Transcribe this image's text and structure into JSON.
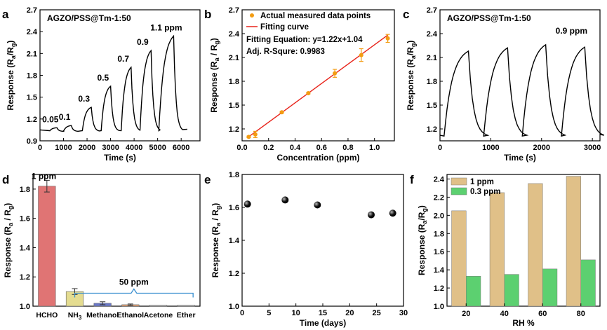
{
  "chart_data": [
    {
      "panel": "a",
      "type": "line",
      "annotation": "AGZO/PSS@Tm-1:50",
      "xlabel": "Time (s)",
      "ylabel": "Response (R",
      "ylabel_sub1": "a",
      "ylabel_mid": "/R",
      "ylabel_sub2": "g",
      "ylabel_end": ")",
      "xlim": [
        0,
        6800
      ],
      "ylim": [
        0.9,
        2.7
      ],
      "xticks": [
        0,
        1000,
        2000,
        3000,
        4000,
        5000,
        6000
      ],
      "yticks": [
        0.9,
        1.2,
        1.5,
        1.8,
        2.1,
        2.4,
        2.7
      ],
      "ytick_labels": [
        "0.9",
        "1.2",
        "1.5",
        "1.8",
        "2.1",
        "2.4",
        "2.7"
      ],
      "color": "#000000",
      "pulses": [
        {
          "start": 400,
          "end": 720,
          "peak": 1.08,
          "label": "0.05"
        },
        {
          "start": 1000,
          "end": 1330,
          "peak": 1.11,
          "label": "0.1"
        },
        {
          "start": 1800,
          "end": 2180,
          "peak": 1.36,
          "label": "0.3"
        },
        {
          "start": 2600,
          "end": 3000,
          "peak": 1.65,
          "label": "0.5"
        },
        {
          "start": 3450,
          "end": 3870,
          "peak": 1.91,
          "label": "0.7"
        },
        {
          "start": 4250,
          "end": 4720,
          "peak": 2.14,
          "label": "0.9"
        },
        {
          "start": 5050,
          "end": 5680,
          "peak": 2.34,
          "label": "1.1 ppm"
        }
      ]
    },
    {
      "panel": "b",
      "type": "scatter",
      "xlabel": "Concentration (ppm)",
      "ylabel": "Response (R",
      "ylabel_sub1": "a",
      "ylabel_mid": " / R",
      "ylabel_sub2": "g",
      "ylabel_end": ")",
      "xlim": [
        0.0,
        1.15
      ],
      "ylim": [
        1.05,
        2.7
      ],
      "xticks": [
        0.0,
        0.2,
        0.4,
        0.6,
        0.8,
        1.0
      ],
      "xtick_labels": [
        "0.0",
        "0.2",
        "0.4",
        "0.6",
        "0.8",
        "1.0"
      ],
      "yticks": [
        1.2,
        1.5,
        1.8,
        2.1,
        2.4,
        2.7
      ],
      "ytick_labels": [
        "1.2",
        "1.5",
        "1.8",
        "2.1",
        "2.4",
        "2.7"
      ],
      "legend": [
        "Actual measured data points",
        "Fitting curve"
      ],
      "equation": "Fitting Equation: y=1.22x+1.04",
      "rsquare": "Adj. R-Squre: 0.9983",
      "point_color": "#f39c12",
      "line_color": "#e8231a",
      "x": [
        0.05,
        0.1,
        0.3,
        0.5,
        0.7,
        0.9,
        1.1
      ],
      "y": [
        1.1,
        1.13,
        1.41,
        1.65,
        1.9,
        2.13,
        2.34
      ],
      "err": [
        0.01,
        0.04,
        0.01,
        0.01,
        0.05,
        0.08,
        0.05
      ],
      "fit": {
        "slope": 1.22,
        "intercept": 1.04,
        "x0": 0.05,
        "x1": 1.1
      }
    },
    {
      "panel": "c",
      "type": "line",
      "annotation": "AGZO/PSS@Tm-1:50",
      "conc_label": "0.9 ppm",
      "xlabel": "Time (s)",
      "ylabel": "Response (R",
      "ylabel_sub1": "a",
      "ylabel_mid": "/R",
      "ylabel_sub2": "g",
      "ylabel_end": ")",
      "xlim": [
        0,
        3150
      ],
      "ylim": [
        1.05,
        2.7
      ],
      "xticks": [
        0,
        1000,
        2000,
        3000
      ],
      "yticks": [
        1.2,
        1.5,
        1.8,
        2.1,
        2.4,
        2.7
      ],
      "ytick_labels": [
        "1.2",
        "1.5",
        "1.8",
        "2.1",
        "2.4",
        "2.7"
      ],
      "color": "#000000",
      "pulses": [
        {
          "start": 80,
          "end": 560,
          "peak": 2.18
        },
        {
          "start": 860,
          "end": 1330,
          "peak": 2.22
        },
        {
          "start": 1620,
          "end": 2080,
          "peak": 2.26
        },
        {
          "start": 2390,
          "end": 2850,
          "peak": 2.23
        }
      ]
    },
    {
      "panel": "d",
      "type": "bar",
      "annotation_top": "1 ppm",
      "annotation_group": "50 ppm",
      "ylabel": "Response (R",
      "ylabel_sub1": "a",
      "ylabel_mid": " / R",
      "ylabel_sub2": "g",
      "ylabel_end": ")",
      "categories": [
        "HCHO",
        "NH",
        "Methanol",
        "Ethanol",
        "Acetone",
        "Ether"
      ],
      "nh3_sub": "3",
      "values": [
        1.82,
        1.1,
        1.02,
        1.01,
        1.0,
        1.0
      ],
      "err": [
        0.04,
        0.02,
        0.01,
        0.005,
        0.0,
        0.0
      ],
      "colors": [
        "#e07474",
        "#e4dc90",
        "#6a78c8",
        "#e8a070",
        "#cccccc",
        "#cccccc"
      ],
      "ylim": [
        1.0,
        1.9
      ],
      "yticks": [
        1.0,
        1.2,
        1.4,
        1.6,
        1.8
      ],
      "ytick_labels": [
        "1.0",
        "1.2",
        "1.4",
        "1.6",
        "1.8"
      ]
    },
    {
      "panel": "e",
      "type": "scatter",
      "xlabel": "Time (days)",
      "ylabel": "Response (R",
      "ylabel_sub1": "a",
      "ylabel_mid": " / R",
      "ylabel_sub2": "g",
      "ylabel_end": ")",
      "xlim": [
        0,
        30
      ],
      "ylim": [
        1.0,
        1.8
      ],
      "xticks": [
        0,
        5,
        10,
        15,
        20,
        25,
        30
      ],
      "yticks": [
        1.0,
        1.2,
        1.4,
        1.6,
        1.8
      ],
      "ytick_labels": [
        "1.0",
        "1.2",
        "1.4",
        "1.6",
        "1.8"
      ],
      "x": [
        1,
        8,
        14,
        24,
        28
      ],
      "y": [
        1.62,
        1.645,
        1.615,
        1.555,
        1.565
      ],
      "color": "#000000"
    },
    {
      "panel": "f",
      "type": "bar",
      "xlabel": "RH %",
      "ylabel": "Response (R",
      "ylabel_sub1": "a",
      "ylabel_mid": "/R",
      "ylabel_sub2": "g",
      "ylabel_end": ")",
      "categories": [
        "20",
        "40",
        "60",
        "80"
      ],
      "series": [
        {
          "name": "1 ppm",
          "values": [
            2.05,
            2.25,
            2.35,
            2.43
          ],
          "color": "#e0c088"
        },
        {
          "name": "0.3 ppm",
          "values": [
            1.33,
            1.35,
            1.41,
            1.51
          ],
          "color": "#5cd070"
        }
      ],
      "ylim": [
        1.0,
        2.45
      ],
      "yticks": [
        1.0,
        1.2,
        1.4,
        1.6,
        1.8,
        2.0,
        2.2,
        2.4
      ],
      "ytick_labels": [
        "1.0",
        "1.2",
        "1.4",
        "1.6",
        "1.8",
        "2.0",
        "2.2",
        "2.4"
      ]
    }
  ],
  "panel_letters": [
    "a",
    "b",
    "c",
    "d",
    "e",
    "f"
  ]
}
